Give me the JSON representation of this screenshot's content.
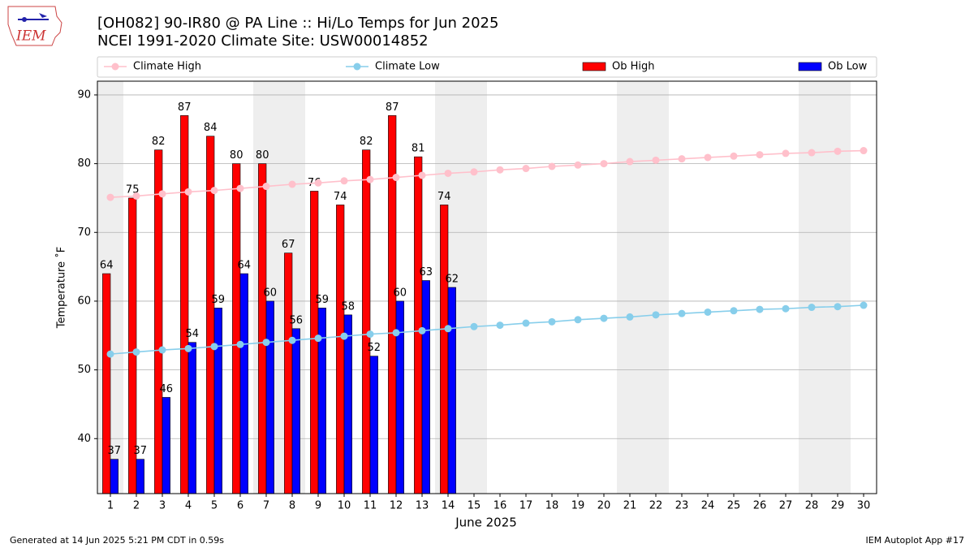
{
  "logo_text": "IEM",
  "footer_left": "Generated at 14 Jun 2025 5:21 PM CDT in 0.59s",
  "footer_right": "IEM Autoplot App #17",
  "chart_data": {
    "type": "bar",
    "title": "[OH082] 90-IR80 @ PA Line :: Hi/Lo Temps for Jun 2025",
    "subtitle": "NCEI 1991-2020 Climate Site: USW00014852",
    "x_label": "June 2025",
    "y_label": "Temperature ˚F",
    "categories": [
      1,
      2,
      3,
      4,
      5,
      6,
      7,
      8,
      9,
      10,
      11,
      12,
      13,
      14,
      15,
      16,
      17,
      18,
      19,
      20,
      21,
      22,
      23,
      24,
      25,
      26,
      27,
      28,
      29,
      30
    ],
    "ylim": [
      32,
      92
    ],
    "yticks": [
      40,
      50,
      60,
      70,
      80,
      90
    ],
    "grid": true,
    "legend": "top",
    "series": [
      {
        "name": "Climate High",
        "type": "line",
        "color": "#ffc0cb",
        "values": [
          75.1,
          75.3,
          75.6,
          75.9,
          76.1,
          76.4,
          76.7,
          77.0,
          77.2,
          77.5,
          77.7,
          78.0,
          78.3,
          78.6,
          78.8,
          79.1,
          79.3,
          79.6,
          79.8,
          80.0,
          80.3,
          80.5,
          80.7,
          80.9,
          81.1,
          81.3,
          81.5,
          81.6,
          81.8,
          81.9
        ]
      },
      {
        "name": "Climate Low",
        "type": "line",
        "color": "#87ceeb",
        "values": [
          52.3,
          52.6,
          52.9,
          53.1,
          53.4,
          53.7,
          54.0,
          54.3,
          54.6,
          54.9,
          55.2,
          55.4,
          55.7,
          56.0,
          56.3,
          56.5,
          56.8,
          57.0,
          57.3,
          57.5,
          57.7,
          58.0,
          58.2,
          58.4,
          58.6,
          58.8,
          58.9,
          59.1,
          59.2,
          59.4
        ]
      },
      {
        "name": "Ob High",
        "type": "bar",
        "color": "#ff0000",
        "values": [
          64,
          75,
          82,
          87,
          84,
          80,
          80,
          67,
          76,
          74,
          82,
          87,
          81,
          74,
          null,
          null,
          null,
          null,
          null,
          null,
          null,
          null,
          null,
          null,
          null,
          null,
          null,
          null,
          null,
          null
        ]
      },
      {
        "name": "Ob Low",
        "type": "bar",
        "color": "#0000ff",
        "values": [
          37,
          37,
          46,
          54,
          59,
          64,
          60,
          56,
          59,
          58,
          52,
          60,
          63,
          62,
          null,
          null,
          null,
          null,
          null,
          null,
          null,
          null,
          null,
          null,
          null,
          null,
          null,
          null,
          null,
          null
        ]
      }
    ]
  }
}
